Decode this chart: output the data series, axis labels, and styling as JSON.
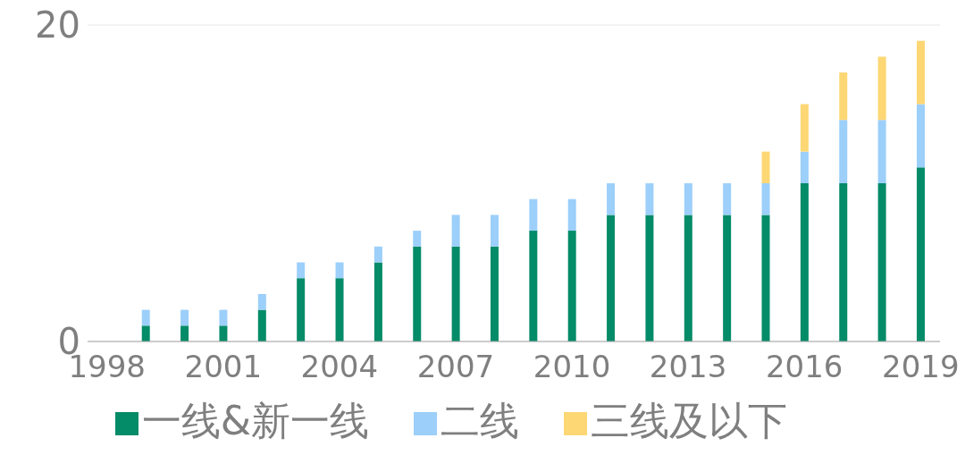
{
  "chart_data": {
    "type": "bar",
    "stacked": true,
    "categories": [
      "1998",
      null,
      null,
      "2001",
      null,
      null,
      "2004",
      null,
      null,
      "2007",
      null,
      null,
      "2010",
      null,
      null,
      "2013",
      null,
      null,
      "2016",
      null,
      null,
      "2019"
    ],
    "series": [
      {
        "name": "一线&新一线",
        "color": "#048b68",
        "values": [
          null,
          1,
          1,
          1,
          2,
          4,
          4,
          5,
          6,
          6,
          6,
          7,
          7,
          8,
          8,
          8,
          8,
          8,
          10,
          10,
          10,
          11
        ]
      },
      {
        "name": "二线",
        "color": "#9ccffa",
        "values": [
          null,
          1,
          1,
          1,
          1,
          1,
          1,
          1,
          1,
          2,
          2,
          2,
          2,
          2,
          2,
          2,
          2,
          2,
          2,
          4,
          4,
          4
        ]
      },
      {
        "name": "三线及以下",
        "color": "#fdd774",
        "values": [
          null,
          null,
          null,
          null,
          null,
          null,
          null,
          null,
          null,
          null,
          null,
          null,
          null,
          null,
          null,
          null,
          null,
          2,
          3,
          3,
          4,
          4
        ]
      }
    ],
    "ylim": [
      0,
      20
    ],
    "yticks": [
      0,
      20
    ],
    "grid": "y",
    "legend": "bottom"
  }
}
